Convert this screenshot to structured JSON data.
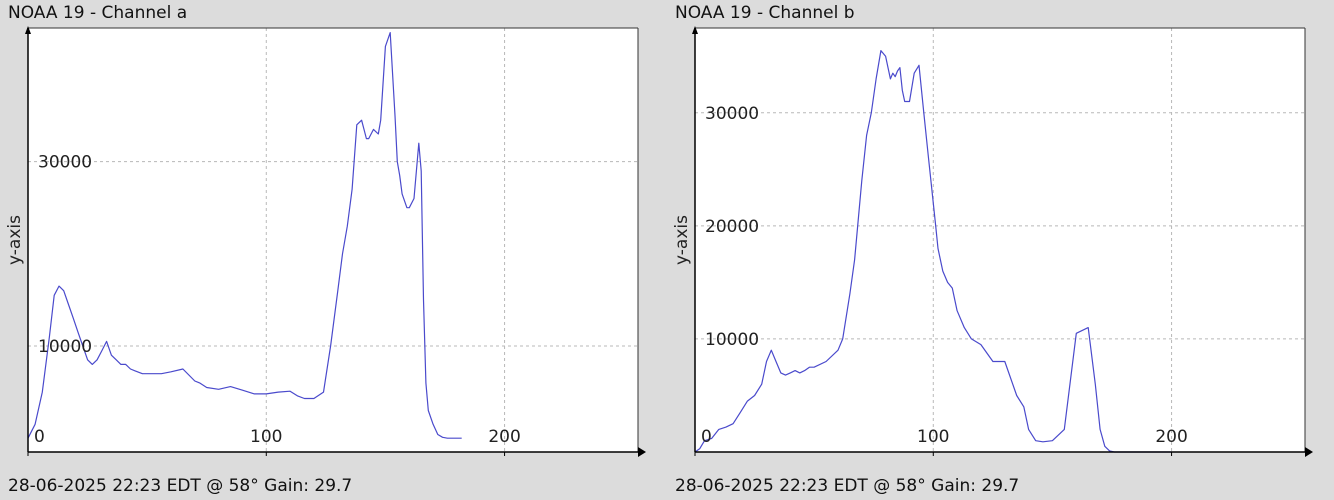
{
  "chart_data": [
    {
      "type": "line",
      "title": "NOAA 19 - Channel a",
      "footer": "28-06-2025 22:23 EDT @ 58° Gain: 29.7",
      "ylabel": "y-axis",
      "xlabel": "",
      "xlim": [
        0,
        256
      ],
      "ylim": [
        -1500,
        44500
      ],
      "grid": true,
      "x_ticks": [
        0,
        100,
        200
      ],
      "x_tick_labels": [
        "0",
        "100",
        "200"
      ],
      "y_ticks": [
        10000,
        30000
      ],
      "y_tick_labels": [
        "10000",
        "30000"
      ],
      "series": [
        {
          "color": "#4a4acc",
          "x": [
            0,
            3,
            6,
            9,
            11,
            13,
            15,
            17,
            19,
            21,
            23,
            25,
            27,
            29,
            31,
            33,
            35,
            37,
            39,
            41,
            43,
            45,
            48,
            52,
            56,
            60,
            65,
            70,
            72,
            75,
            80,
            85,
            90,
            95,
            100,
            105,
            110,
            113,
            116,
            120,
            124,
            127,
            130,
            132,
            134,
            136,
            138,
            140,
            141,
            142,
            143,
            145,
            147,
            148,
            150,
            152,
            154,
            155,
            156,
            157,
            159,
            160,
            162,
            164,
            165,
            166,
            167,
            168,
            170,
            172,
            174,
            176,
            178,
            180,
            182
          ],
          "y": [
            0,
            1500,
            5000,
            11000,
            15500,
            16500,
            16000,
            14500,
            13000,
            11500,
            10000,
            8500,
            8000,
            8500,
            9500,
            10500,
            9000,
            8500,
            8000,
            8000,
            7500,
            7300,
            7000,
            7000,
            7000,
            7200,
            7500,
            6200,
            6000,
            5500,
            5300,
            5600,
            5200,
            4800,
            4800,
            5000,
            5100,
            4600,
            4300,
            4300,
            5000,
            10000,
            16000,
            20000,
            23000,
            27000,
            34000,
            34500,
            33500,
            32500,
            32500,
            33500,
            33000,
            34500,
            42500,
            44000,
            35000,
            30000,
            28500,
            26500,
            25000,
            25000,
            26000,
            32000,
            29000,
            15000,
            6000,
            3000,
            1500,
            400,
            100,
            0,
            0,
            0,
            0
          ]
        }
      ]
    },
    {
      "type": "line",
      "title": "NOAA 19 - Channel b",
      "footer": "28-06-2025 22:23 EDT @ 58° Gain: 29.7",
      "ylabel": "y-axis",
      "xlabel": "",
      "xlim": [
        0,
        256
      ],
      "ylim": [
        0,
        37500
      ],
      "grid": true,
      "x_ticks": [
        0,
        100,
        200
      ],
      "x_tick_labels": [
        "0",
        "100",
        "200"
      ],
      "y_ticks": [
        10000,
        20000,
        30000
      ],
      "y_tick_labels": [
        "10000",
        "20000",
        "30000"
      ],
      "series": [
        {
          "color": "#4a4acc",
          "x": [
            0,
            2,
            4,
            7,
            10,
            13,
            16,
            19,
            22,
            25,
            28,
            30,
            32,
            34,
            36,
            38,
            40,
            42,
            44,
            46,
            48,
            50,
            55,
            60,
            62,
            65,
            67,
            70,
            72,
            74,
            76,
            78,
            80,
            81,
            82,
            83,
            84,
            85,
            86,
            87,
            88,
            90,
            92,
            94,
            96,
            98,
            99,
            100,
            101,
            102,
            104,
            106,
            108,
            110,
            113,
            116,
            120,
            125,
            130,
            135,
            138,
            140,
            143,
            146,
            150,
            155,
            160,
            165,
            168,
            170,
            172,
            174,
            176,
            178,
            180,
            185,
            190,
            195,
            200
          ],
          "y": [
            0,
            300,
            1000,
            1200,
            2000,
            2200,
            2500,
            3500,
            4500,
            5000,
            6000,
            8000,
            9000,
            8000,
            7000,
            6800,
            7000,
            7200,
            7000,
            7200,
            7500,
            7500,
            8000,
            9000,
            10000,
            14000,
            17000,
            24000,
            28000,
            30000,
            33000,
            35500,
            35000,
            34000,
            33000,
            33500,
            33200,
            33700,
            34000,
            32000,
            31000,
            31000,
            33500,
            34200,
            30000,
            26000,
            24000,
            22000,
            20000,
            18000,
            16000,
            15000,
            14500,
            12500,
            11000,
            10000,
            9500,
            8000,
            8000,
            5000,
            4000,
            2000,
            1000,
            900,
            1000,
            2000,
            10500,
            11000,
            6000,
            2000,
            500,
            100,
            0,
            0,
            0,
            0,
            0,
            0,
            0
          ]
        }
      ]
    }
  ]
}
